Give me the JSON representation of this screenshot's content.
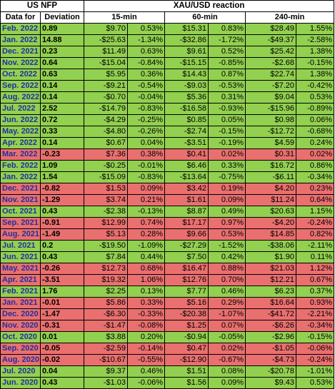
{
  "header": {
    "us_nfp": "US NFP",
    "xau_usd": "XAU/USD reaction",
    "data_for": "Data for",
    "deviation": "Deviation",
    "m15": "15-min",
    "m60": "60-min",
    "m240": "240-min"
  },
  "colors": {
    "green": "#92d050",
    "red": "#ea6f6f"
  },
  "rows": [
    {
      "date": "Feb. 2022",
      "dev": "0.89",
      "d15": "$9.70",
      "p15": "0.53%",
      "d60": "$15.31",
      "p60": "0.83%",
      "d240": "$28.49",
      "p240": "1.55%",
      "tone": "green"
    },
    {
      "date": "Jan. 2022",
      "dev": "14.88",
      "d15": "-$25.63",
      "p15": "-1.34%",
      "d60": "-$32.86",
      "p60": "-1.72%",
      "d240": "-$49.37",
      "p240": "-2.58%",
      "tone": "green"
    },
    {
      "date": "Dec. 2021",
      "dev": "0.23",
      "d15": "$11.49",
      "p15": "0.63%",
      "d60": "$9.61",
      "p60": "0.52%",
      "d240": "$25.42",
      "p240": "1.38%",
      "tone": "green"
    },
    {
      "date": "Nov. 2022",
      "dev": "0.64",
      "d15": "-$15.04",
      "p15": "-0.84%",
      "d60": "-$15.15",
      "p60": "-0.85%",
      "d240": "-$2.68",
      "p240": "-0.15%",
      "tone": "green"
    },
    {
      "date": "Oct. 2022",
      "dev": "0.63",
      "d15": "$5.95",
      "p15": "0.36%",
      "d60": "$14.43",
      "p60": "0.87%",
      "d240": "$22.74",
      "p240": "1.38%",
      "tone": "green"
    },
    {
      "date": "Sep. 2022",
      "dev": "0.14",
      "d15": "-$9.21",
      "p15": "-0.54%",
      "d60": "-$9.03",
      "p60": "-0.53%",
      "d240": "-$7.20",
      "p240": "-0.42%",
      "tone": "green"
    },
    {
      "date": "Aug. 2022",
      "dev": "0.14",
      "d15": "-$0.70",
      "p15": "-0.04%",
      "d60": "$5.36",
      "p60": "0.31%",
      "d240": "$9.04",
      "p240": "0.53%",
      "tone": "green"
    },
    {
      "date": "Jul. 2022",
      "dev": "2.52",
      "d15": "-$14.79",
      "p15": "-0.83%",
      "d60": "-$16.58",
      "p60": "-0.93%",
      "d240": "-$15.96",
      "p240": "-0.89%",
      "tone": "green"
    },
    {
      "date": "Jun. 2022",
      "dev": "0.72",
      "d15": "-$4.29",
      "p15": "-0.25%",
      "d60": "$0.85",
      "p60": "0.05%",
      "d240": "$0.98",
      "p240": "0.06%",
      "tone": "green"
    },
    {
      "date": "May. 2022",
      "dev": "0.33",
      "d15": "-$4.80",
      "p15": "-0.26%",
      "d60": "-$2.74",
      "p60": "-0.15%",
      "d240": "-$12.72",
      "p240": "-0.68%",
      "tone": "green"
    },
    {
      "date": "Apr. 2022",
      "dev": "0.14",
      "d15": "$0.67",
      "p15": "0.04%",
      "d60": "-$3.51",
      "p60": "-0.19%",
      "d240": "$4.59",
      "p240": "0.24%",
      "tone": "green"
    },
    {
      "date": "Mar. 2022",
      "dev": "-0.23",
      "d15": "$7.36",
      "p15": "0.38%",
      "d60": "$0.41",
      "p60": "0.02%",
      "d240": "$0.31",
      "p240": "0.02%",
      "tone": "red"
    },
    {
      "date": "Feb. 2022",
      "dev": "1.09",
      "d15": "-$0.25",
      "p15": "-0.01%",
      "d60": "$6.46",
      "p60": "0.33%",
      "d240": "$16.72",
      "p240": "0.86%",
      "tone": "green"
    },
    {
      "date": "Jan. 2022",
      "dev": "1.54",
      "d15": "-$15.09",
      "p15": "-0.83%",
      "d60": "-$13.64",
      "p60": "-0.75%",
      "d240": "-$6.11",
      "p240": "-0.34%",
      "tone": "green"
    },
    {
      "date": "Dec. 2021",
      "dev": "-0.82",
      "d15": "$1.53",
      "p15": "0.09%",
      "d60": "$3.42",
      "p60": "0.19%",
      "d240": "$4.20",
      "p240": "0.23%",
      "tone": "red"
    },
    {
      "date": "Nov. 2021",
      "dev": "-1.29",
      "d15": "$3.74",
      "p15": "0.21%",
      "d60": "$1.61",
      "p60": "0.09%",
      "d240": "$11.24",
      "p240": "0.64%",
      "tone": "red"
    },
    {
      "date": "Oct. 2021",
      "dev": "0.43",
      "d15": "-$2.38",
      "p15": "-0.13%",
      "d60": "$8.87",
      "p60": "0.49%",
      "d240": "$20.63",
      "p240": "1.15%",
      "tone": "green"
    },
    {
      "date": "Sep. 2021",
      "dev": "-0.91",
      "d15": "$12.99",
      "p15": "0.74%",
      "d60": "$17.17",
      "p60": "0.97%",
      "d240": "-$4.20",
      "p240": "-0.24%",
      "tone": "red"
    },
    {
      "date": "Aug. 2021",
      "dev": "-1.49",
      "d15": "$5.13",
      "p15": "0.28%",
      "d60": "$9.66",
      "p60": "0.53%",
      "d240": "$14.85",
      "p240": "0.82%",
      "tone": "red"
    },
    {
      "date": "Jul. 2021",
      "dev": "0.2",
      "d15": "-$19.50",
      "p15": "-1.09%",
      "d60": "-$27.29",
      "p60": "-1.52%",
      "d240": "-$38.06",
      "p240": "-2.11%",
      "tone": "green"
    },
    {
      "date": "Jun. 2021",
      "dev": "0.43",
      "d15": "$7.84",
      "p15": "0.44%",
      "d60": "$7.50",
      "p60": "0.42%",
      "d240": "$1.90",
      "p240": "0.11%",
      "tone": "green"
    },
    {
      "date": "May. 2021",
      "dev": "-0.26",
      "d15": "$12.73",
      "p15": "0.68%",
      "d60": "$16.47",
      "p60": "0.88%",
      "d240": "$21.03",
      "p240": "1.12%",
      "tone": "red"
    },
    {
      "date": "Apr. 2021",
      "dev": "-3.51",
      "d15": "$19.32",
      "p15": "1.06%",
      "d60": "$12.76",
      "p60": "0.70%",
      "d240": "$12.21",
      "p240": "0.67%",
      "tone": "red"
    },
    {
      "date": "Feb. 2021",
      "dev": "1.76",
      "d15": "$2.25",
      "p15": "0.13%",
      "d60": "$7.77",
      "p60": "0.46%",
      "d240": "$6.23",
      "p240": "0.37%",
      "tone": "green"
    },
    {
      "date": "Jan. 2021",
      "dev": "-0.01",
      "d15": "$5.86",
      "p15": "0.33%",
      "d60": "$5.16",
      "p60": "0.29%",
      "d240": "$16.64",
      "p240": "0.93%",
      "tone": "red"
    },
    {
      "date": "Dec. 2020",
      "dev": "-1.47",
      "d15": "-$6.30",
      "p15": "-0.33%",
      "d60": "-$20.38",
      "p60": "-1.07%",
      "d240": "-$41.72",
      "p240": "-2.21%",
      "tone": "red"
    },
    {
      "date": "Nov. 2020",
      "dev": "-0.31",
      "d15": "-$1.47",
      "p15": "-0.08%",
      "d60": "$1.25",
      "p60": "0.07%",
      "d240": "-$6.26",
      "p240": "-0.34%",
      "tone": "red"
    },
    {
      "date": "Oct. 2020",
      "dev": "0.01",
      "d15": "$3.88",
      "p15": "0.20%",
      "d60": "-$0.94",
      "p60": "-0.05%",
      "d240": "-$2.96",
      "p240": "-0.15%",
      "tone": "green"
    },
    {
      "date": "Sep. 2020",
      "dev": "-0.05",
      "d15": "-$2.59",
      "p15": "-0.14%",
      "d60": "$0.47",
      "p60": "0.02%",
      "d240": "-$1.05",
      "p240": "-0.06%",
      "tone": "red"
    },
    {
      "date": "Aug. 2020",
      "dev": "-0.02",
      "d15": "-$10.67",
      "p15": "-0.55%",
      "d60": "-$12.90",
      "p60": "-0.67%",
      "d240": "-$4.73",
      "p240": "-0.24%",
      "tone": "red"
    },
    {
      "date": "Jul. 2020",
      "dev": "0.04",
      "d15": "$9.37",
      "p15": "0.46%",
      "d60": "$1.51",
      "p60": "0.08%",
      "d240": "-$20.78",
      "p240": "-1.01%",
      "tone": "green"
    },
    {
      "date": "Jun. 2020",
      "dev": "0.43",
      "d15": "-$1.03",
      "p15": "-0.06%",
      "d60": "$1.56",
      "p60": "0.09%",
      "d240": "$9.43",
      "p240": "0.53%",
      "tone": "green"
    }
  ]
}
